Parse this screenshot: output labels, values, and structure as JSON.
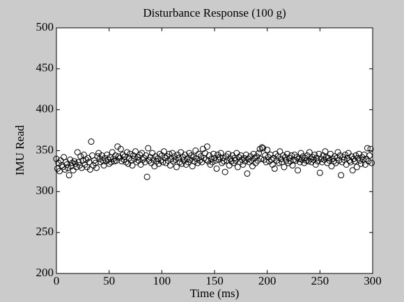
{
  "chart_data": {
    "type": "scatter",
    "title": "Disturbance Response (100 g)",
    "x_label": "Time (ms)",
    "y_label": "IMU Read",
    "xlim": [
      0,
      300
    ],
    "xticks": [
      0,
      50,
      100,
      150,
      200,
      250,
      300
    ],
    "ylim": [
      200,
      500
    ],
    "yticks": [
      200,
      250,
      300,
      350,
      400,
      450,
      500
    ],
    "color": "#000000",
    "x": [
      0,
      1,
      2,
      3,
      4,
      5,
      6,
      7,
      8,
      9,
      10,
      11,
      12,
      13,
      14,
      15,
      16,
      17,
      18,
      19,
      20,
      21,
      22,
      23,
      24,
      25,
      26,
      27,
      28,
      29,
      30,
      31,
      32,
      33,
      34,
      35,
      36,
      37,
      38,
      39,
      40,
      41,
      42,
      43,
      44,
      45,
      46,
      47,
      48,
      49,
      50,
      51,
      52,
      53,
      54,
      55,
      56,
      57,
      58,
      59,
      60,
      61,
      62,
      63,
      64,
      65,
      66,
      67,
      68,
      69,
      70,
      71,
      72,
      73,
      74,
      75,
      76,
      77,
      78,
      79,
      80,
      81,
      82,
      83,
      84,
      85,
      86,
      87,
      88,
      89,
      90,
      91,
      92,
      93,
      94,
      95,
      96,
      97,
      98,
      99,
      100,
      101,
      102,
      103,
      104,
      105,
      106,
      107,
      108,
      109,
      110,
      111,
      112,
      113,
      114,
      115,
      116,
      117,
      118,
      119,
      120,
      121,
      122,
      123,
      124,
      125,
      126,
      127,
      128,
      129,
      130,
      131,
      132,
      133,
      134,
      135,
      136,
      137,
      138,
      139,
      140,
      141,
      142,
      143,
      144,
      145,
      146,
      147,
      148,
      149,
      150,
      151,
      152,
      153,
      154,
      155,
      156,
      157,
      158,
      159,
      160,
      161,
      162,
      163,
      164,
      165,
      166,
      167,
      168,
      169,
      170,
      171,
      172,
      173,
      174,
      175,
      176,
      177,
      178,
      179,
      180,
      181,
      182,
      183,
      184,
      185,
      186,
      187,
      188,
      189,
      190,
      191,
      192,
      193,
      194,
      195,
      196,
      197,
      198,
      199,
      200,
      201,
      202,
      203,
      204,
      205,
      206,
      207,
      208,
      209,
      210,
      211,
      212,
      213,
      214,
      215,
      216,
      217,
      218,
      219,
      220,
      221,
      222,
      223,
      224,
      225,
      226,
      227,
      228,
      229,
      230,
      231,
      232,
      233,
      234,
      235,
      236,
      237,
      238,
      239,
      240,
      241,
      242,
      243,
      244,
      245,
      246,
      247,
      248,
      249,
      250,
      251,
      252,
      253,
      254,
      255,
      256,
      257,
      258,
      259,
      260,
      261,
      262,
      263,
      264,
      265,
      266,
      267,
      268,
      269,
      270,
      271,
      272,
      273,
      274,
      275,
      276,
      277,
      278,
      279,
      280,
      281,
      282,
      283,
      284,
      285,
      286,
      287,
      288,
      289,
      290,
      291,
      292,
      293,
      294,
      295,
      296,
      297,
      298,
      299
    ],
    "values": [
      340,
      328,
      335,
      325,
      338,
      332,
      330,
      342,
      327,
      336,
      333,
      329,
      320,
      339,
      331,
      335,
      326,
      337,
      334,
      330,
      348,
      336,
      332,
      343,
      329,
      338,
      345,
      333,
      339,
      330,
      341,
      336,
      327,
      361,
      344,
      332,
      338,
      335,
      329,
      343,
      347,
      340,
      336,
      344,
      338,
      332,
      341,
      337,
      345,
      339,
      334,
      342,
      336,
      348,
      340,
      337,
      344,
      338,
      355,
      343,
      341,
      352,
      337,
      345,
      339,
      343,
      336,
      348,
      334,
      341,
      346,
      338,
      332,
      344,
      340,
      349,
      336,
      342,
      338,
      345,
      333,
      347,
      339,
      341,
      336,
      344,
      318,
      353,
      338,
      342,
      335,
      347,
      339,
      331,
      343,
      337,
      340,
      334,
      346,
      338,
      344,
      336,
      349,
      341,
      335,
      343,
      338,
      346,
      332,
      340,
      347,
      337,
      343,
      339,
      330,
      345,
      341,
      336,
      348,
      334,
      342,
      338,
      345,
      333,
      340,
      336,
      347,
      339,
      344,
      331,
      342,
      337,
      350,
      340,
      335,
      346,
      338,
      343,
      336,
      352,
      341,
      347,
      339,
      355,
      337,
      344,
      333,
      340,
      336,
      346,
      341,
      338,
      328,
      345,
      339,
      342,
      347,
      335,
      341,
      337,
      324,
      343,
      338,
      346,
      332,
      340,
      337,
      344,
      335,
      341,
      338,
      347,
      330,
      342,
      336,
      344,
      339,
      333,
      341,
      337,
      345,
      322,
      340,
      336,
      343,
      338,
      331,
      346,
      341,
      335,
      343,
      338,
      347,
      352,
      340,
      354,
      353,
      339,
      344,
      336,
      351,
      342,
      337,
      345,
      339,
      333,
      341,
      328,
      346,
      338,
      343,
      335,
      349,
      340,
      336,
      344,
      330,
      342,
      338,
      346,
      335,
      341,
      337,
      344,
      332,
      339,
      345,
      338,
      342,
      326,
      340,
      336,
      347,
      339,
      343,
      335,
      341,
      338,
      344,
      337,
      348,
      340,
      336,
      342,
      339,
      345,
      333,
      341,
      337,
      346,
      323,
      340,
      336,
      344,
      339,
      349,
      342,
      335,
      341,
      338,
      346,
      331,
      340,
      337,
      343,
      335,
      341,
      348,
      338,
      344,
      320,
      336,
      342,
      339,
      345,
      333,
      341,
      347,
      338,
      336,
      343,
      326,
      340,
      337,
      344,
      330,
      341,
      346,
      338,
      334,
      342,
      339,
      345,
      333,
      340,
      353,
      337,
      344,
      352,
      335
    ]
  }
}
